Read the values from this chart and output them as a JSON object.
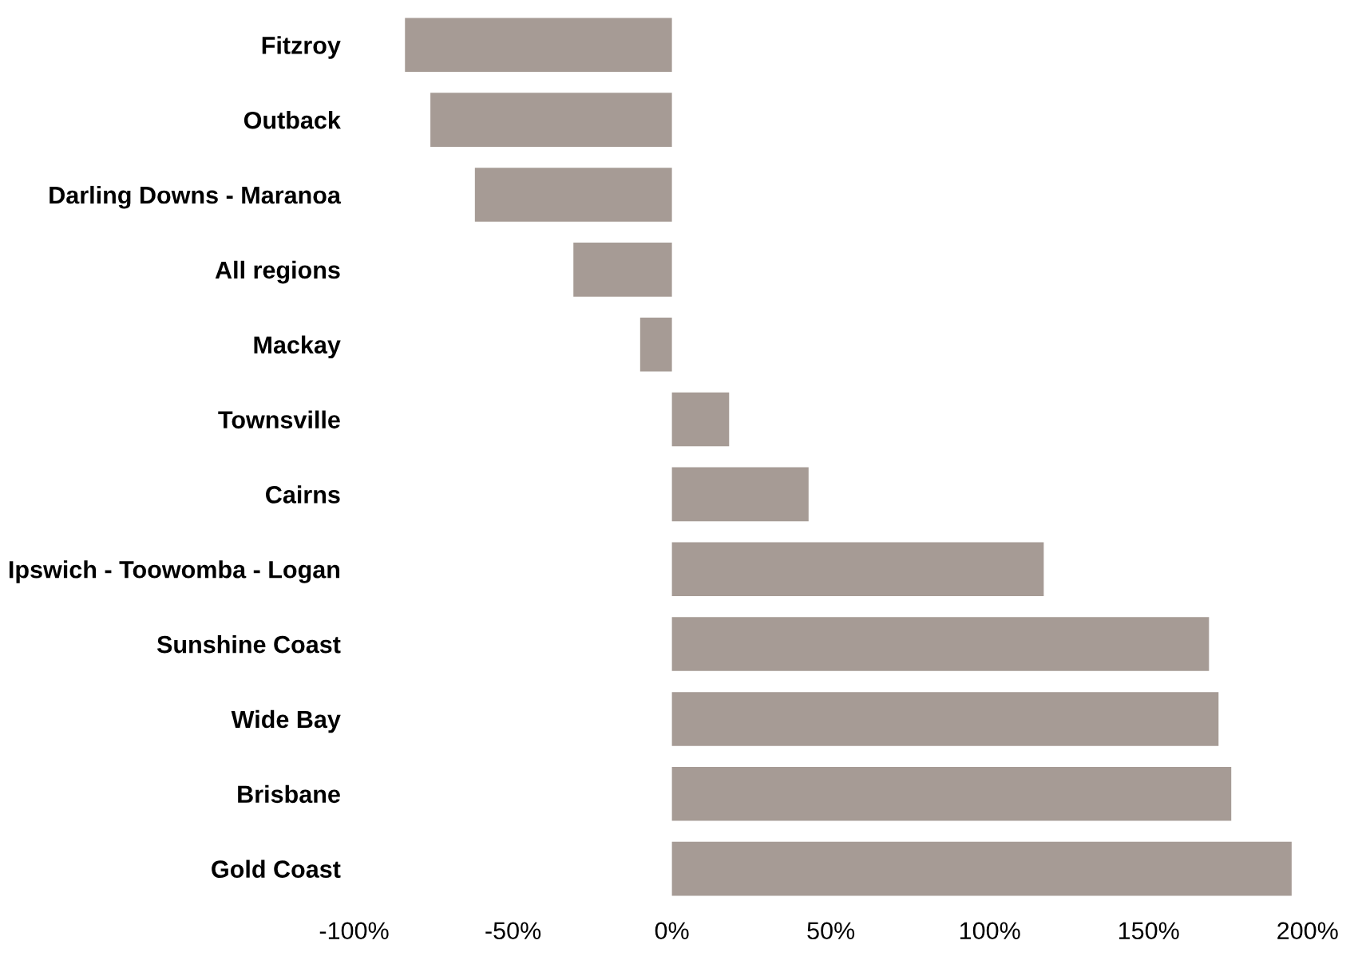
{
  "chart_data": {
    "type": "bar",
    "orientation": "horizontal",
    "categories": [
      "Fitzroy",
      "Outback",
      "Darling Downs - Maranoa",
      "All regions",
      "Mackay",
      "Townsville",
      "Cairns",
      "Ipswich - Toowomba - Logan",
      "Sunshine Coast",
      "Wide Bay",
      "Brisbane",
      "Gold Coast"
    ],
    "values": [
      -84,
      -76,
      -62,
      -31,
      -10,
      18,
      43,
      117,
      169,
      172,
      176,
      195
    ],
    "color": "#a69b95",
    "xlim": [
      -100,
      200
    ],
    "xticks": [
      {
        "value": -100,
        "label": "-100%"
      },
      {
        "value": -50,
        "label": "-50%"
      },
      {
        "value": 0,
        "label": "0%"
      },
      {
        "value": 50,
        "label": "50%"
      },
      {
        "value": 100,
        "label": "100%"
      },
      {
        "value": 150,
        "label": "150%"
      },
      {
        "value": 200,
        "label": "200%"
      }
    ],
    "grid": false,
    "legend": false
  }
}
